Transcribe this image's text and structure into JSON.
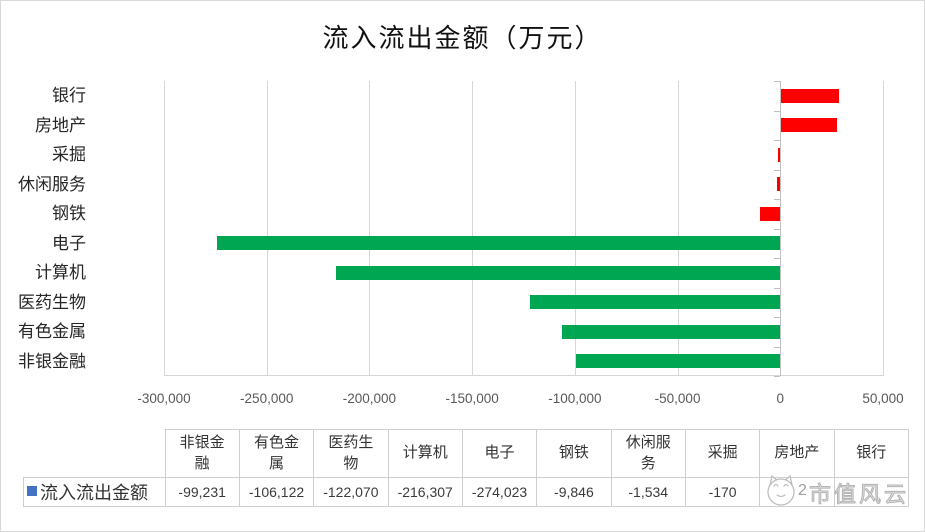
{
  "page": {
    "background": "#ffffff",
    "border_color": "#d9d9d9"
  },
  "chart_data": {
    "type": "bar",
    "orientation": "horizontal",
    "title": "流入流出金额（万元）",
    "categories": [
      "银行",
      "房地产",
      "采掘",
      "休闲服务",
      "钢铁",
      "电子",
      "计算机",
      "医药生物",
      "有色金属",
      "非银金融"
    ],
    "values": [
      28000,
      27200,
      -170,
      -1534,
      -9846,
      -274023,
      -216307,
      -122070,
      -106122,
      -99231
    ],
    "bar_colors": [
      "red",
      "red",
      "red",
      "red",
      "red",
      "green",
      "green",
      "green",
      "green",
      "green"
    ],
    "xlim": [
      -300000,
      50000
    ],
    "x_tick_step": 50000,
    "x_tick_labels": [
      "-300,000",
      "-250,000",
      "-200,000",
      "-150,000",
      "-100,000",
      "-50,000",
      "0",
      "50,000"
    ],
    "grid": true,
    "legend_position": "bottom-data-table"
  },
  "colors": {
    "red": "#fe0000",
    "green": "#00a651",
    "legend_marker": "#4472c4",
    "gridline": "#d6d6d6",
    "axis_line": "#bfbfbf"
  },
  "table": {
    "series_label": "流入流出金额",
    "columns": [
      "非银金融",
      "有色金属",
      "医药生物",
      "计算机",
      "电子",
      "钢铁",
      "休闲服务",
      "采掘",
      "房地产",
      "银行"
    ],
    "values": [
      "-99,231",
      "-106,122",
      "-122,070",
      "-216,307",
      "-274,023",
      "-9,846",
      "-1,534",
      "-170",
      "",
      ""
    ]
  },
  "watermark": {
    "visible_digit": "2",
    "text": "市值风云",
    "logo": "cat-face-icon"
  }
}
